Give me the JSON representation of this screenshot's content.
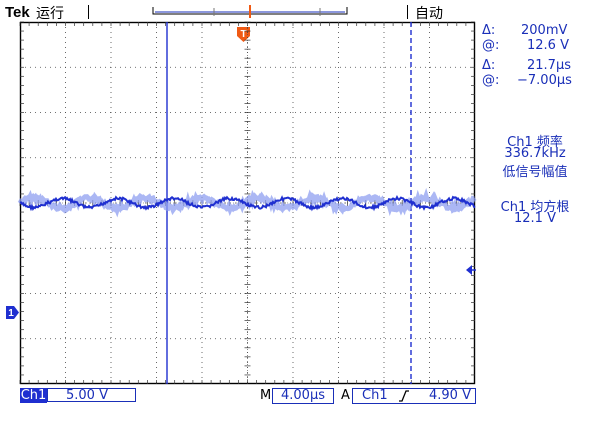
{
  "header": {
    "brand": "Tek",
    "run_state": "运行",
    "trigger_mode": "自动",
    "trigger_marker": "T"
  },
  "cursors": {
    "row1_delta_label": "Δ:",
    "row1_delta_value": "200mV",
    "row1_at_label": "@:",
    "row1_at_value": "12.6 V",
    "row2_delta_label": "Δ:",
    "row2_delta_value": "21.7µs",
    "row2_at_label": "@:",
    "row2_at_value": "−7.00µs"
  },
  "measurements": [
    {
      "label": "Ch1 频率",
      "value": "336.7kHz",
      "note": "低信号幅值"
    },
    {
      "label": "Ch1 均方根",
      "value": "12.1 V"
    }
  ],
  "channel_marker": "1",
  "status_bar": {
    "channel": "Ch1",
    "volts_per_div": "5.00 V",
    "time_prefix": "M",
    "time_per_div": "4.00µs",
    "trigger_prefix": "A",
    "trigger_channel": "Ch1",
    "trigger_slope_icon": "rising-edge-icon",
    "trigger_level": "4.90 V"
  },
  "colors": {
    "trace": "#1f2fd0",
    "trace_ghost": "#8f9ff0",
    "trigger_marker": "#f05a14",
    "text": "#1a2fb8",
    "grid": "#000000"
  }
}
